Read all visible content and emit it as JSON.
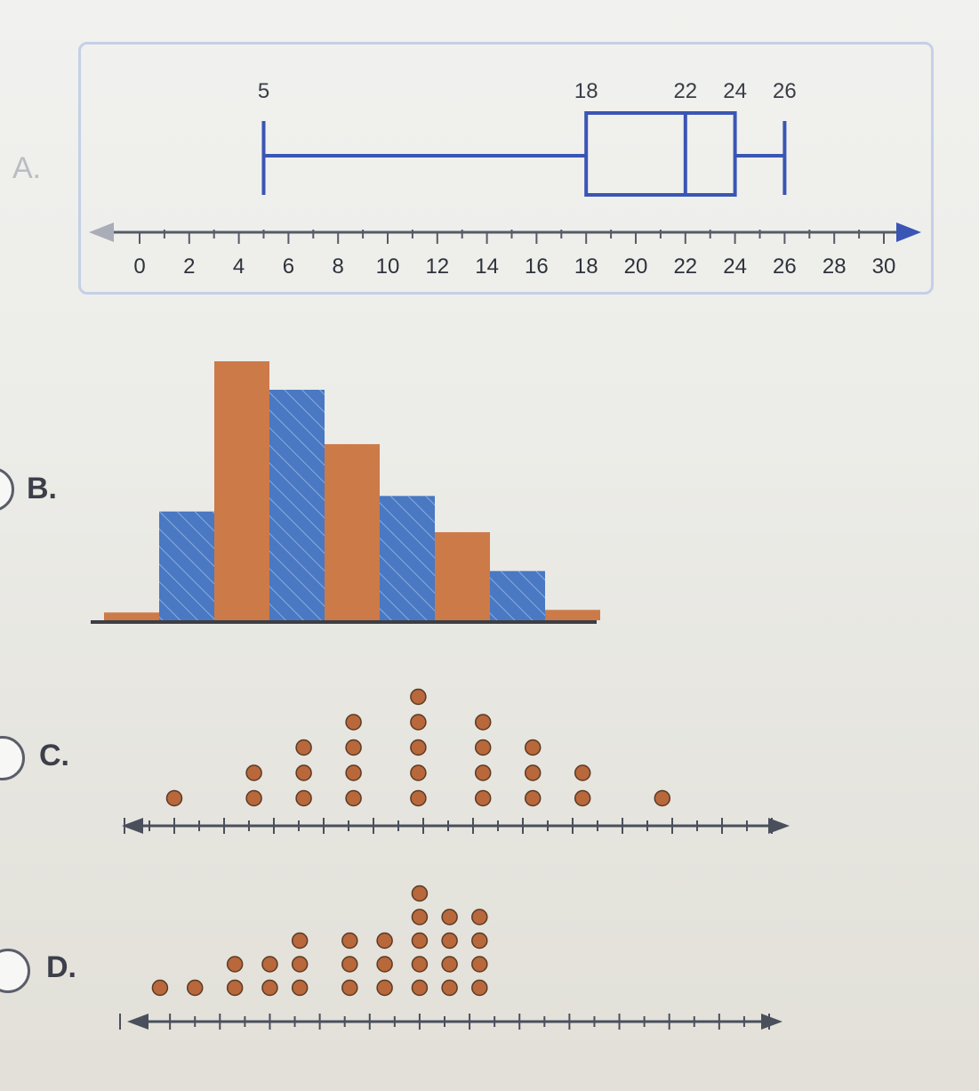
{
  "options": [
    {
      "label": "A."
    },
    {
      "label": "B."
    },
    {
      "label": "C."
    },
    {
      "label": "D."
    }
  ],
  "chart_data": [
    {
      "type": "boxplot",
      "option": "A.",
      "min": 5,
      "q1": 18,
      "median": 22,
      "q3": 24,
      "max": 26,
      "value_labels": [
        "5",
        "18",
        "22",
        "24",
        "26"
      ],
      "axis": {
        "min": 0,
        "max": 30,
        "major_step": 2,
        "minor_step": 1,
        "tick_labels": [
          "0",
          "2",
          "4",
          "6",
          "8",
          "10",
          "12",
          "14",
          "16",
          "18",
          "20",
          "22",
          "24",
          "26",
          "28",
          "30"
        ]
      },
      "colors": {
        "box": "#3a55b4",
        "axis": "#555b66"
      }
    },
    {
      "type": "bar",
      "option": "B.",
      "values": [
        0.03,
        0.42,
        1.0,
        0.89,
        0.68,
        0.48,
        0.34,
        0.19,
        0.04
      ],
      "bar_colors": [
        "#cc7a48",
        "#4a78c2",
        "#cc7a48",
        "#4a78c2",
        "#cc7a48",
        "#4a78c2",
        "#cc7a48",
        "#4a78c2",
        "#cc7a48"
      ],
      "hatched": [
        false,
        true,
        false,
        true,
        false,
        true,
        false,
        true,
        false
      ],
      "colors": {
        "orange": "#cc7a48",
        "blue": "#4a78c2",
        "baseline": "#3d3e44"
      }
    },
    {
      "type": "dot",
      "option": "C.",
      "axis": {
        "min": 0,
        "max": 13
      },
      "x": [
        1,
        2.6,
        3.6,
        4.6,
        5.9,
        7.2,
        8.2,
        9.2,
        10.8
      ],
      "counts": [
        1,
        2,
        3,
        4,
        5,
        4,
        3,
        2,
        1
      ],
      "colors": {
        "dot": "#b8683a",
        "axis": "#4a4f5c"
      }
    },
    {
      "type": "dot",
      "option": "D.",
      "axis": {
        "min": 0,
        "max": 13
      },
      "x": [
        0.8,
        1.5,
        2.3,
        3.0,
        3.6,
        4.6,
        5.3,
        6.0,
        6.6,
        7.2
      ],
      "counts": [
        1,
        1,
        2,
        2,
        3,
        3,
        3,
        5,
        4,
        4
      ],
      "colors": {
        "dot": "#b8683a",
        "axis": "#4a4f5c"
      }
    }
  ]
}
